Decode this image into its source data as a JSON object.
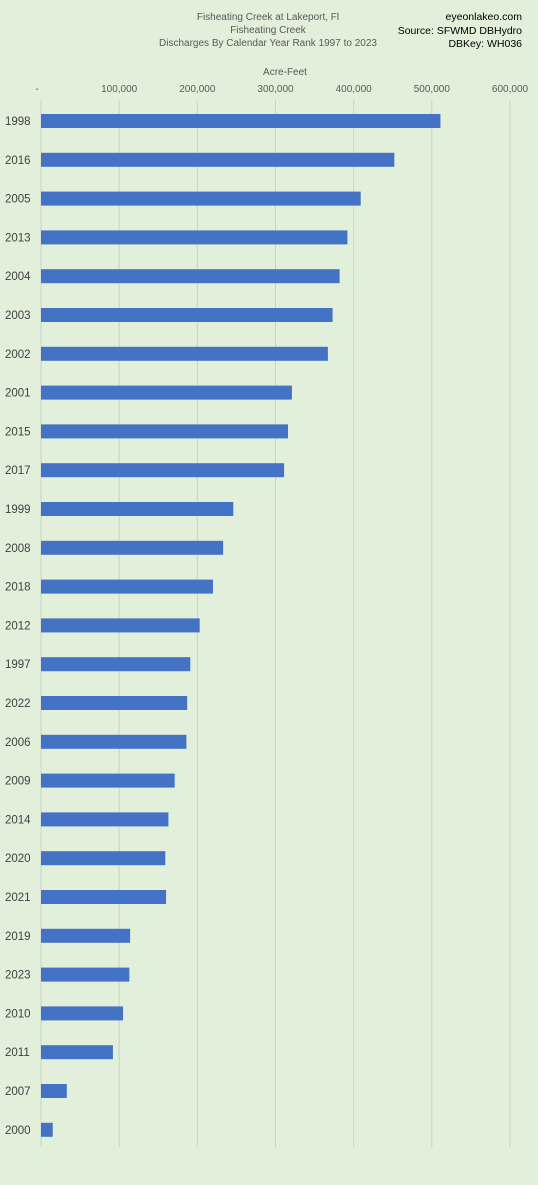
{
  "header": {
    "title_line1": "Fisheating Creek at Lakeport, Fl",
    "title_line2": "Fisheating Creek",
    "title_line3": "Discharges By Calendar Year Rank 1997 to 2023",
    "source_line1": "eyeonlakeo.com",
    "source_line2": "Source: SFWMD DBHydro",
    "source_line3": "DBKey: WH036"
  },
  "colors": {
    "background": "#e2efda",
    "bar": "#4472c4",
    "gridline": "#c9d3c4"
  },
  "chart_data": {
    "type": "bar",
    "orientation": "horizontal",
    "title": "Fisheating Creek at Lakeport, Fl / Fisheating Creek / Discharges By Calendar Year Rank 1997 to 2023",
    "xlabel": "Acre-Feet",
    "ylabel": "",
    "xlim": [
      0,
      600000
    ],
    "x_axis_position": "top",
    "grid": true,
    "x_tick_values": [
      0,
      100000,
      200000,
      300000,
      400000,
      500000,
      600000
    ],
    "x_tick_labels": [
      "-",
      "100,000",
      "200,000",
      "300,000",
      "400,000",
      "500,000",
      "600,000"
    ],
    "categories": [
      "1998",
      "2016",
      "2005",
      "2013",
      "2004",
      "2003",
      "2002",
      "2001",
      "2015",
      "2017",
      "1999",
      "2008",
      "2018",
      "2012",
      "1997",
      "2022",
      "2006",
      "2009",
      "2014",
      "2020",
      "2021",
      "2019",
      "2023",
      "2010",
      "2011",
      "2007",
      "2000"
    ],
    "values": [
      511000,
      452000,
      409000,
      392000,
      382000,
      373000,
      367000,
      321000,
      316000,
      311000,
      246000,
      233000,
      220000,
      203000,
      191000,
      187000,
      186000,
      171000,
      163000,
      159000,
      160000,
      114000,
      113000,
      105000,
      92000,
      33000,
      15000
    ]
  }
}
